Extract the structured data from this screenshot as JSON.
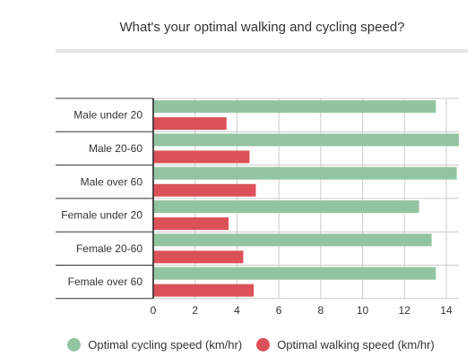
{
  "chart_data": {
    "type": "bar",
    "orientation": "horizontal",
    "title": "What's your optimal walking and cycling speed?",
    "categories": [
      "Male under 20",
      "Male 20-60",
      "Male over 60",
      "Female under 20",
      "Female 20-60",
      "Female over 60"
    ],
    "series": [
      {
        "name": "Optimal cycling speed (km/hr)",
        "color": "#93c4a1",
        "values": [
          13.5,
          14.6,
          14.5,
          12.7,
          13.3,
          13.5
        ]
      },
      {
        "name": "Optimal walking speed (km/hr)",
        "color": "#dc5158",
        "values": [
          3.5,
          4.6,
          4.9,
          3.6,
          4.3,
          4.8
        ]
      }
    ],
    "x_ticks": [
      "0",
      "2",
      "4",
      "6",
      "8",
      "10",
      "12",
      "14"
    ],
    "xlim": [
      0,
      14.6
    ],
    "grid": true,
    "legend_position": "bottom"
  }
}
